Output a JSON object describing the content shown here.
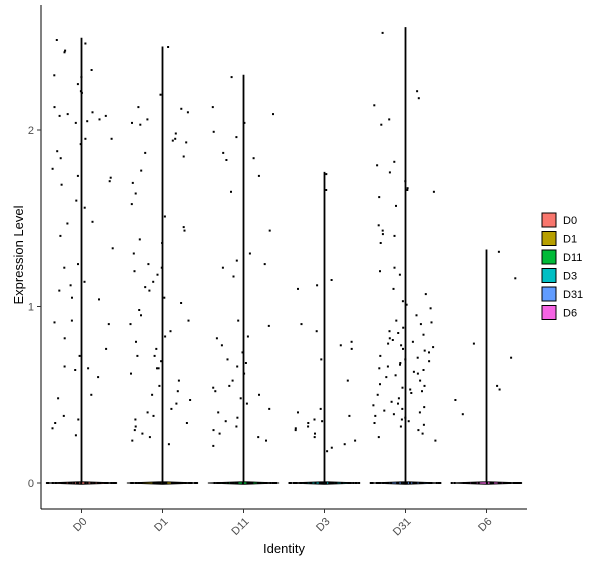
{
  "chart_data": {
    "type": "violin",
    "xlabel": "Identity",
    "ylabel": "Expression Level",
    "ylim": [
      -0.15,
      2.7
    ],
    "yticks": [
      0,
      1,
      2
    ],
    "grid": false,
    "legend_position": "right",
    "series": [
      {
        "name": "D0",
        "color": "#F8766D",
        "max": 2.52,
        "points": [
          2.22,
          2.49,
          2.51,
          2.45,
          2.26,
          2.21,
          2.13,
          2.08,
          2.05,
          2.04,
          2.09,
          2.06,
          2.34,
          2.31,
          2.3,
          2.44,
          2.1,
          2.08,
          1.95,
          1.92,
          1.84,
          1.78,
          1.71,
          1.95,
          1.88,
          1.74,
          1.73,
          1.69,
          1.6,
          1.56,
          1.48,
          1.47,
          1.4,
          1.33,
          1.24,
          1.22,
          1.14,
          1.12,
          1.09,
          1.04,
          1.05,
          0.92,
          0.91,
          0.9,
          0.82,
          0.76,
          0.72,
          0.66,
          0.65,
          0.64,
          0.6,
          0.5,
          0.48,
          0.38,
          0.36,
          0.34,
          0.31,
          0.27
        ]
      },
      {
        "name": "D1",
        "color": "#B79F00",
        "max": 2.47,
        "points": [
          2.47,
          2.2,
          2.13,
          2.12,
          2.1,
          2.06,
          2.04,
          2.03,
          1.98,
          1.95,
          1.94,
          1.93,
          1.87,
          1.85,
          1.77,
          1.7,
          1.64,
          1.58,
          1.51,
          1.45,
          1.43,
          1.38,
          1.36,
          1.3,
          1.24,
          1.22,
          1.2,
          1.14,
          1.11,
          1.09,
          1.02,
          0.98,
          0.95,
          0.9,
          0.86,
          0.8,
          0.76,
          0.72,
          0.69,
          0.65,
          0.62,
          0.58,
          0.55,
          0.52,
          0.5,
          0.47,
          0.45,
          0.42,
          0.4,
          0.38,
          0.36,
          0.34,
          0.32,
          0.3,
          0.28,
          0.26,
          0.24,
          0.22,
          0.65,
          0.72,
          0.83,
          0.92,
          1.05,
          1.18
        ]
      },
      {
        "name": "D11",
        "color": "#00BA38",
        "max": 2.31,
        "points": [
          2.3,
          2.13,
          2.09,
          2.04,
          1.99,
          1.96,
          1.87,
          1.84,
          1.83,
          1.74,
          1.65,
          1.43,
          1.3,
          1.26,
          1.24,
          1.22,
          1.17,
          0.92,
          0.89,
          0.83,
          0.82,
          0.78,
          0.74,
          0.7,
          0.66,
          0.62,
          0.58,
          0.54,
          0.52,
          0.5,
          0.48,
          0.45,
          0.42,
          0.4,
          0.37,
          0.35,
          0.32,
          0.3,
          0.28,
          0.26,
          0.24,
          0.21,
          0.68,
          0.55
        ]
      },
      {
        "name": "D3",
        "color": "#00BFC4",
        "max": 1.76,
        "points": [
          1.75,
          1.66,
          1.15,
          1.12,
          1.1,
          0.9,
          0.86,
          0.8,
          0.78,
          0.76,
          0.7,
          0.58,
          0.42,
          0.4,
          0.38,
          0.36,
          0.34,
          0.32,
          0.3,
          0.28,
          0.26,
          0.24,
          0.22,
          0.2,
          0.18,
          0.31,
          0.35
        ]
      },
      {
        "name": "D31",
        "color": "#619CFF",
        "max": 2.58,
        "points": [
          2.55,
          2.22,
          2.18,
          2.14,
          2.06,
          2.03,
          1.82,
          1.8,
          1.76,
          1.71,
          1.67,
          1.66,
          1.65,
          1.62,
          1.57,
          1.46,
          1.43,
          1.41,
          1.4,
          1.36,
          1.22,
          1.2,
          1.18,
          1.1,
          1.07,
          1.03,
          1.01,
          0.99,
          0.95,
          0.92,
          0.9,
          0.88,
          0.86,
          0.84,
          0.82,
          0.8,
          0.78,
          0.76,
          0.74,
          0.72,
          0.7,
          0.68,
          0.66,
          0.64,
          0.62,
          0.6,
          0.58,
          0.56,
          0.54,
          0.52,
          0.5,
          0.48,
          0.46,
          0.44,
          0.42,
          0.4,
          0.39,
          0.38,
          0.37,
          0.36,
          0.35,
          0.34,
          0.33,
          0.32,
          0.3,
          0.28,
          0.26,
          0.24,
          0.75,
          0.77,
          0.79,
          0.81,
          0.85,
          0.91,
          0.71,
          0.69,
          0.67,
          0.45,
          0.43,
          0.41,
          0.55,
          0.53,
          0.51,
          0.61,
          0.63,
          0.65
        ]
      },
      {
        "name": "D6",
        "color": "#F564E3",
        "max": 1.32,
        "points": [
          1.31,
          1.16,
          0.79,
          0.71,
          0.55,
          0.53,
          0.47,
          0.39
        ]
      }
    ]
  }
}
